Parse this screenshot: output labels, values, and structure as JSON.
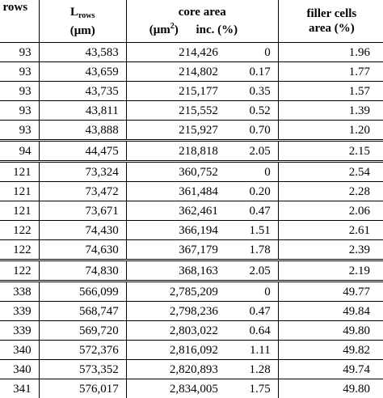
{
  "header": {
    "rows": "rows",
    "l_rows_main": "L",
    "l_rows_sub": "rows",
    "l_rows_unit": "(μm)",
    "core_area": "core area",
    "area_unit_open": "(μm",
    "area_unit_exp": "2",
    "area_unit_close": ")",
    "inc": "inc. (%)",
    "filler_line1": "filler cells",
    "filler_line2": "area (%)"
  },
  "rows": [
    {
      "rows": "93",
      "l_rows": "43,583",
      "core_area": "214,426",
      "inc": "0",
      "filler": "1.96",
      "group_start": true
    },
    {
      "rows": "93",
      "l_rows": "43,659",
      "core_area": "214,802",
      "inc": "0.17",
      "filler": "1.77"
    },
    {
      "rows": "93",
      "l_rows": "43,735",
      "core_area": "215,177",
      "inc": "0.35",
      "filler": "1.57"
    },
    {
      "rows": "93",
      "l_rows": "43,811",
      "core_area": "215,552",
      "inc": "0.52",
      "filler": "1.39"
    },
    {
      "rows": "93",
      "l_rows": "43,888",
      "core_area": "215,927",
      "inc": "0.70",
      "filler": "1.20"
    },
    {
      "rows": "94",
      "l_rows": "44,475",
      "core_area": "218,818",
      "inc": "2.05",
      "filler": "2.15",
      "group_start": true
    },
    {
      "rows": "121",
      "l_rows": "73,324",
      "core_area": "360,752",
      "inc": "0",
      "filler": "2.54",
      "group_start": true
    },
    {
      "rows": "121",
      "l_rows": "73,472",
      "core_area": "361,484",
      "inc": "0.20",
      "filler": "2.28"
    },
    {
      "rows": "121",
      "l_rows": "73,671",
      "core_area": "362,461",
      "inc": "0.47",
      "filler": "2.06"
    },
    {
      "rows": "122",
      "l_rows": "74,430",
      "core_area": "366,194",
      "inc": "1.51",
      "filler": "2.61"
    },
    {
      "rows": "122",
      "l_rows": "74,630",
      "core_area": "367,179",
      "inc": "1.78",
      "filler": "2.39"
    },
    {
      "rows": "122",
      "l_rows": "74,830",
      "core_area": "368,163",
      "inc": "2.05",
      "filler": "2.19",
      "group_start": true
    },
    {
      "rows": "338",
      "l_rows": "566,099",
      "core_area": "2,785,209",
      "inc": "0",
      "filler": "49.77",
      "group_start": true
    },
    {
      "rows": "339",
      "l_rows": "568,747",
      "core_area": "2,798,236",
      "inc": "0.47",
      "filler": "49.84"
    },
    {
      "rows": "339",
      "l_rows": "569,720",
      "core_area": "2,803,022",
      "inc": "0.64",
      "filler": "49.80"
    },
    {
      "rows": "340",
      "l_rows": "572,376",
      "core_area": "2,816,092",
      "inc": "1.11",
      "filler": "49.82"
    },
    {
      "rows": "340",
      "l_rows": "573,352",
      "core_area": "2,820,893",
      "inc": "1.28",
      "filler": "49.74"
    },
    {
      "rows": "341",
      "l_rows": "576,017",
      "core_area": "2,834,005",
      "inc": "1.75",
      "filler": "49.80"
    }
  ]
}
